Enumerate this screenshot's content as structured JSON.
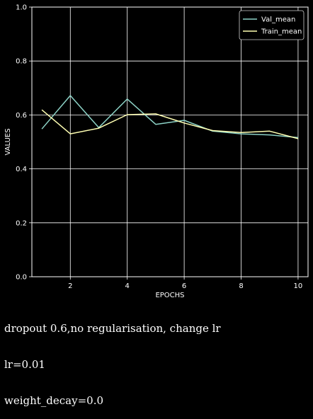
{
  "chart_data": {
    "type": "line",
    "xlabel": "EPOCHS",
    "ylabel": "VALUES",
    "xlim": [
      0.65,
      10.35
    ],
    "ylim": [
      0.0,
      1.0
    ],
    "x_ticks": [
      2,
      4,
      6,
      8,
      10
    ],
    "y_ticks": [
      0.0,
      0.2,
      0.4,
      0.6,
      0.8,
      1.0
    ],
    "grid": true,
    "legend_position": "top-right",
    "x": [
      1,
      2,
      3,
      4,
      5,
      6,
      7,
      8,
      9,
      10
    ],
    "series": [
      {
        "name": "Val_mean",
        "color": "#8dd3c7",
        "values": [
          0.548,
          0.672,
          0.553,
          0.659,
          0.565,
          0.58,
          0.54,
          0.53,
          0.526,
          0.516
        ]
      },
      {
        "name": "Train_mean",
        "color": "#ffffb3",
        "values": [
          0.619,
          0.53,
          0.551,
          0.601,
          0.604,
          0.57,
          0.542,
          0.535,
          0.54,
          0.512
        ]
      }
    ]
  },
  "caption": {
    "lines": [
      "dropout 0.6,no regularisation, change lr",
      "lr=0.01",
      "weight_decay=0.0"
    ]
  },
  "colors": {
    "background": "#000000",
    "axes": "#ffffff",
    "grid": "#ffffff"
  }
}
